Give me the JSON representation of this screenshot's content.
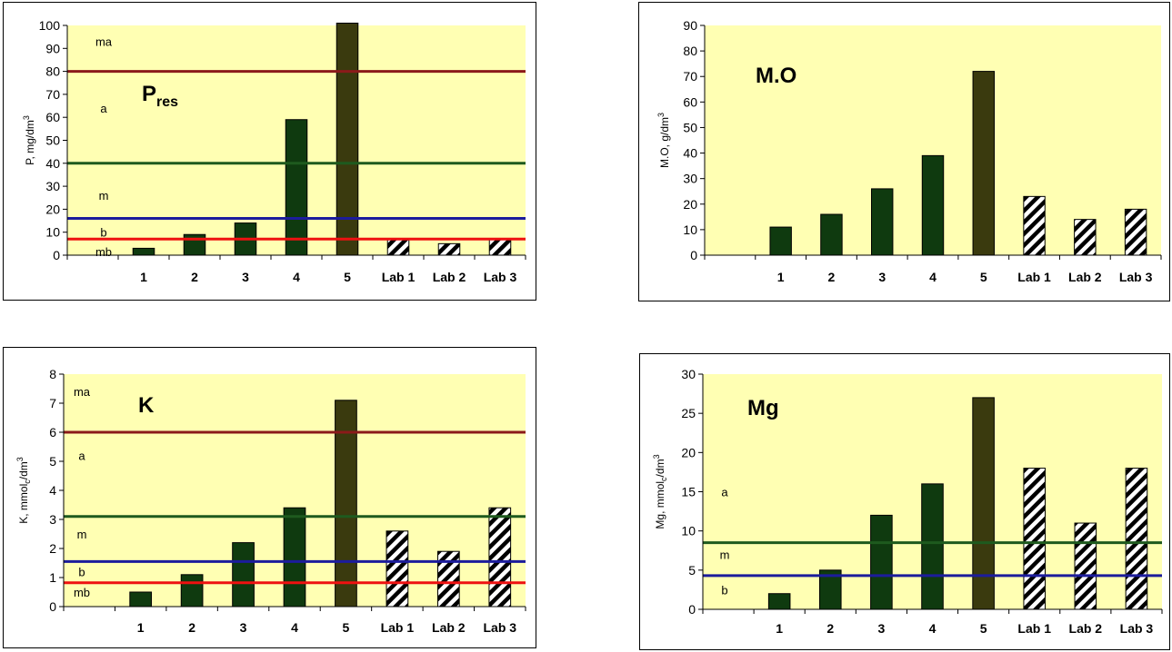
{
  "chart_data": [
    {
      "type": "bar",
      "title": "P",
      "title_sub": "res",
      "ylabel": "P, mg/dm",
      "ylabel_sup": "3",
      "ylabel_sub": "",
      "ylabel_after": "",
      "ylim": [
        0,
        100
      ],
      "yticks": [
        0,
        10,
        20,
        30,
        40,
        50,
        60,
        70,
        80,
        90,
        100
      ],
      "categories": [
        "",
        "1",
        "2",
        "3",
        "4",
        "5",
        "Lab 1",
        "Lab 2",
        "Lab 3"
      ],
      "values": [
        null,
        3,
        9,
        14,
        59,
        101,
        7,
        5,
        7
      ],
      "styles": [
        "none",
        "green",
        "green",
        "green",
        "green",
        "olive",
        "hatch",
        "hatch",
        "hatch"
      ],
      "reference_lines": [
        {
          "value": 80,
          "color": "#8B1A1A"
        },
        {
          "value": 40,
          "color": "#1E5A1E"
        },
        {
          "value": 16,
          "color": "#1C1C9C"
        },
        {
          "value": 7,
          "color": "#EE1111"
        }
      ],
      "band_labels": [
        {
          "text": "ma",
          "y": 93
        },
        {
          "text": "a",
          "y": 64
        },
        {
          "text": "m",
          "y": 26
        },
        {
          "text": "b",
          "y": 10
        },
        {
          "text": "mb",
          "y": 1.5
        }
      ],
      "colors": {
        "plot_bg": "#FFFFB3",
        "green": "#0F3A0F",
        "olive": "#3A3A0E",
        "hatch": "#000000"
      }
    },
    {
      "type": "bar",
      "title": "M.O",
      "title_sub": "",
      "ylabel": "M.O, g/dm",
      "ylabel_sup": "3",
      "ylabel_sub": "",
      "ylabel_after": "",
      "ylim": [
        0,
        90
      ],
      "yticks": [
        0,
        10,
        20,
        30,
        40,
        50,
        60,
        70,
        80,
        90
      ],
      "categories": [
        "",
        "1",
        "2",
        "3",
        "4",
        "5",
        "Lab 1",
        "Lab 2",
        "Lab 3"
      ],
      "values": [
        null,
        11,
        16,
        26,
        39,
        72,
        23,
        14,
        18
      ],
      "styles": [
        "none",
        "green",
        "green",
        "green",
        "green",
        "olive",
        "hatch",
        "hatch",
        "hatch"
      ],
      "reference_lines": [],
      "band_labels": [],
      "colors": {
        "plot_bg": "#FFFFB3",
        "green": "#0F3A0F",
        "olive": "#3A3A0E",
        "hatch": "#000000"
      }
    },
    {
      "type": "bar",
      "title": "K",
      "title_sub": "",
      "ylabel": "K, mmol",
      "ylabel_sup": "3",
      "ylabel_sub": "c",
      "ylabel_after": "/dm",
      "ylim": [
        0,
        8
      ],
      "yticks": [
        0,
        1,
        2,
        3,
        4,
        5,
        6,
        7,
        8
      ],
      "categories": [
        "",
        "1",
        "2",
        "3",
        "4",
        "5",
        "Lab 1",
        "Lab 2",
        "Lab 3"
      ],
      "values": [
        null,
        0.5,
        1.1,
        2.2,
        3.4,
        7.1,
        2.6,
        1.9,
        3.4
      ],
      "styles": [
        "none",
        "green",
        "green",
        "green",
        "green",
        "olive",
        "hatch",
        "hatch",
        "hatch"
      ],
      "reference_lines": [
        {
          "value": 6,
          "color": "#8B1A1A"
        },
        {
          "value": 3.1,
          "color": "#1E5A1E"
        },
        {
          "value": 1.55,
          "color": "#1C1C9C"
        },
        {
          "value": 0.82,
          "color": "#EE1111"
        }
      ],
      "band_labels": [
        {
          "text": "ma",
          "y": 7.4
        },
        {
          "text": "a",
          "y": 5.2
        },
        {
          "text": "m",
          "y": 2.5
        },
        {
          "text": "b",
          "y": 1.2
        },
        {
          "text": "mb",
          "y": 0.5
        }
      ],
      "colors": {
        "plot_bg": "#FFFFB3",
        "green": "#0F3A0F",
        "olive": "#3A3A0E",
        "hatch": "#000000"
      }
    },
    {
      "type": "bar",
      "title": "Mg",
      "title_sub": "",
      "ylabel": "Mg, mmol",
      "ylabel_sup": "3",
      "ylabel_sub": "c",
      "ylabel_after": "/dm",
      "ylim": [
        0,
        30
      ],
      "yticks": [
        0,
        5,
        10,
        15,
        20,
        25,
        30
      ],
      "categories": [
        "",
        "1",
        "2",
        "3",
        "4",
        "5",
        "Lab 1",
        "Lab 2",
        "Lab 3"
      ],
      "values": [
        null,
        2,
        5,
        12,
        16,
        27,
        18,
        11,
        18
      ],
      "styles": [
        "none",
        "green",
        "green",
        "green",
        "green",
        "olive",
        "hatch",
        "hatch",
        "hatch"
      ],
      "reference_lines": [
        {
          "value": 8.5,
          "color": "#1E5A1E"
        },
        {
          "value": 4.3,
          "color": "#1C1C9C"
        }
      ],
      "band_labels": [
        {
          "text": "a",
          "y": 15
        },
        {
          "text": "m",
          "y": 7
        },
        {
          "text": "b",
          "y": 2.5
        }
      ],
      "colors": {
        "plot_bg": "#FFFFB3",
        "green": "#0F3A0F",
        "olive": "#3A3A0E",
        "hatch": "#000000"
      }
    }
  ]
}
